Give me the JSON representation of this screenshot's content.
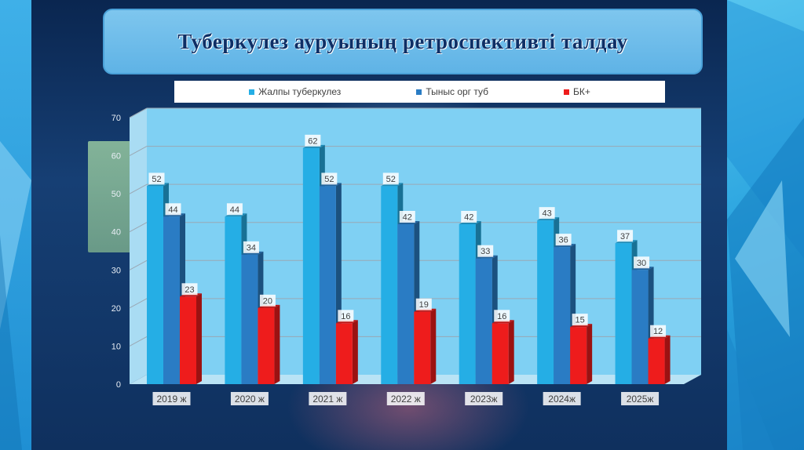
{
  "slide": {
    "title": "Туберкулез ауруының ретроспективті талдау"
  },
  "chart_data": {
    "type": "bar",
    "title": "Туберкулез ауруының ретроспективті талдау",
    "categories": [
      "2019 ж",
      "2020 ж",
      "2021 ж",
      "2022 ж",
      "2023ж",
      "2024ж",
      "2025ж"
    ],
    "series": [
      {
        "name": "Жалпы туберкулез",
        "color": "#25aee5",
        "values": [
          52,
          44,
          62,
          52,
          42,
          43,
          37
        ]
      },
      {
        "name": "Тыныс орг туб",
        "color": "#2a7cc4",
        "values": [
          44,
          34,
          52,
          42,
          33,
          36,
          30
        ]
      },
      {
        "name": "БК+",
        "color": "#ee1c1c",
        "values": [
          23,
          20,
          16,
          19,
          16,
          15,
          12
        ]
      }
    ],
    "yticks": [
      0,
      10,
      20,
      30,
      40,
      50,
      60,
      70
    ],
    "ylim": [
      0,
      70
    ],
    "grid": true,
    "legend_position": "top",
    "data_labels": true
  }
}
